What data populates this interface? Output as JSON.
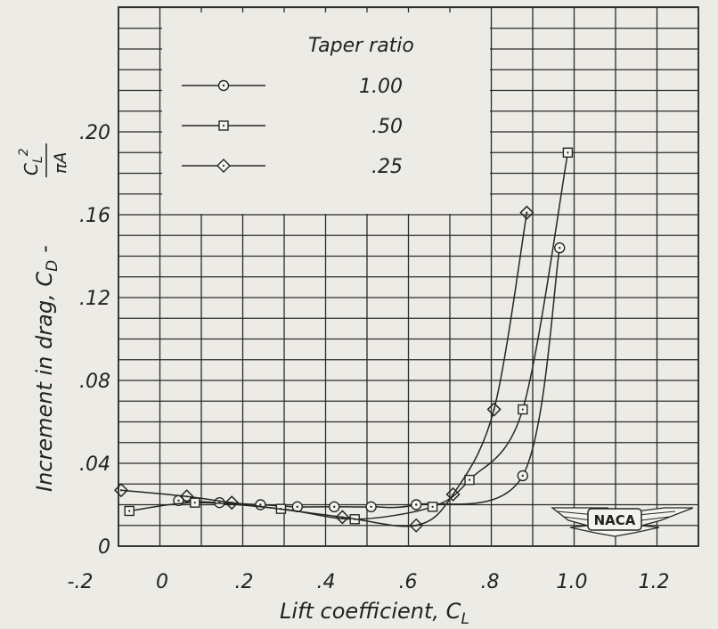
{
  "chart_data": {
    "type": "line",
    "title": "",
    "xlabel": "Lift coefficient, C",
    "xlabel_sub": "L",
    "ylabel_main": "Increment in drag,  C",
    "ylabel_sub": "D",
    "ylabel_tail": "-",
    "ylabel_frac_num": "C",
    "ylabel_frac_num_sub": "L",
    "ylabel_frac_num_sup": "2",
    "ylabel_frac_den": "πA",
    "xlim": [
      -0.2,
      1.2
    ],
    "ylim": [
      0,
      0.24
    ],
    "x_ticks": [
      {
        "value": -0.2,
        "label": "-.2"
      },
      {
        "value": 0,
        "label": "0"
      },
      {
        "value": 0.2,
        "label": ".2"
      },
      {
        "value": 0.4,
        "label": ".4"
      },
      {
        "value": 0.6,
        "label": ".6"
      },
      {
        "value": 0.8,
        "label": ".8"
      },
      {
        "value": 1.0,
        "label": "1.0"
      },
      {
        "value": 1.2,
        "label": "1.2"
      }
    ],
    "y_ticks": [
      {
        "value": 0,
        "label": "0"
      },
      {
        "value": 0.04,
        "label": ".04"
      },
      {
        "value": 0.08,
        "label": ".08"
      },
      {
        "value": 0.12,
        "label": ".12"
      },
      {
        "value": 0.16,
        "label": ".16"
      },
      {
        "value": 0.2,
        "label": ".20"
      }
    ],
    "grid": true,
    "legend": {
      "title": "Taper ratio",
      "placement": "top-left"
    },
    "series": [
      {
        "name": "1.00",
        "marker": "circle",
        "points": [
          [
            0.04,
            0.022
          ],
          [
            0.14,
            0.021
          ],
          [
            0.24,
            0.02
          ],
          [
            0.33,
            0.019
          ],
          [
            0.42,
            0.019
          ],
          [
            0.51,
            0.019
          ],
          [
            0.62,
            0.02
          ],
          [
            0.88,
            0.034
          ],
          [
            0.97,
            0.144
          ]
        ]
      },
      {
        "name": ".50",
        "marker": "square",
        "points": [
          [
            -0.08,
            0.017
          ],
          [
            0.08,
            0.021
          ],
          [
            0.29,
            0.018
          ],
          [
            0.47,
            0.013
          ],
          [
            0.66,
            0.019
          ],
          [
            0.75,
            0.032
          ],
          [
            0.88,
            0.066
          ],
          [
            0.99,
            0.19
          ]
        ]
      },
      {
        "name": ".25",
        "marker": "diamond",
        "points": [
          [
            -0.1,
            0.027
          ],
          [
            0.06,
            0.024
          ],
          [
            0.17,
            0.021
          ],
          [
            0.44,
            0.014
          ],
          [
            0.62,
            0.01
          ],
          [
            0.71,
            0.025
          ],
          [
            0.81,
            0.066
          ],
          [
            0.89,
            0.161
          ]
        ]
      }
    ]
  },
  "logo": {
    "text": "NACA",
    "icon": "naca-wings-logo"
  }
}
